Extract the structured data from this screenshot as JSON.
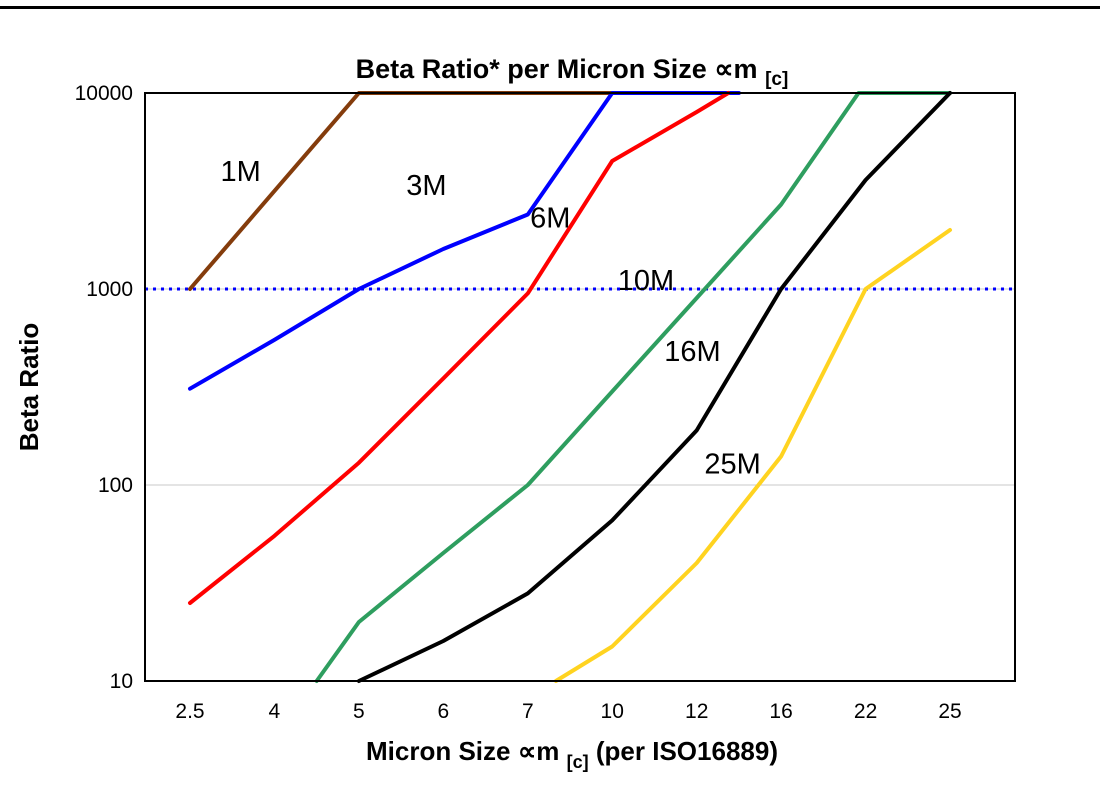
{
  "title": {
    "prefix": "Beta Ratio* per Micron Size ",
    "symbol": "∝m",
    "subscript": "[c]"
  },
  "y_axis": {
    "label": "Beta Ratio",
    "scale": "log",
    "ticks": [
      "10000",
      "1000",
      "100",
      "10"
    ]
  },
  "x_axis": {
    "label_prefix": "Micron Size ",
    "label_symbol": "∝m",
    "label_subscript": "[c]",
    "label_suffix": " (per ISO16889)",
    "ticks": [
      "2.5",
      "4",
      "5",
      "6",
      "7",
      "10",
      "12",
      "16",
      "22",
      "25"
    ]
  },
  "chart_data": {
    "type": "line",
    "title": "Beta Ratio* per Micron Size ∝m[c]",
    "xlabel": "Micron Size ∝m[c] (per ISO16889)",
    "ylabel": "Beta Ratio",
    "x_scale": "categorical",
    "y_scale": "log",
    "ylim": [
      10,
      10000
    ],
    "grid": "horizontal-decades",
    "legend_position": "inline-labels",
    "categories": [
      2.5,
      4,
      5,
      6,
      7,
      10,
      12,
      16,
      22,
      25
    ],
    "reference_line": {
      "value": 1000,
      "color": "#0000FF",
      "style": "dotted"
    },
    "gridlines": [
      100,
      1000
    ],
    "series": [
      {
        "name": "1M",
        "color": "#843C0C",
        "points": [
          [
            2.5,
            1000
          ],
          [
            5,
            10000
          ],
          [
            10,
            10000
          ]
        ],
        "label": {
          "text": "1M",
          "x": 3.4,
          "y": 3900
        }
      },
      {
        "name": "3M",
        "color": "#0000FF",
        "points": [
          [
            2.5,
            310
          ],
          [
            4,
            550
          ],
          [
            5,
            1000
          ],
          [
            6,
            1600
          ],
          [
            7,
            2400
          ],
          [
            10,
            10000
          ],
          [
            14,
            10000
          ]
        ],
        "label": {
          "text": "3M",
          "x": 5.8,
          "y": 3300
        }
      },
      {
        "name": "6M",
        "color": "#FF0000",
        "points": [
          [
            2.5,
            25
          ],
          [
            4,
            55
          ],
          [
            5,
            130
          ],
          [
            6,
            350
          ],
          [
            7,
            950
          ],
          [
            10,
            4500
          ],
          [
            12,
            8000
          ],
          [
            13.5,
            10000
          ]
        ],
        "label": {
          "text": "6M",
          "x": 7.8,
          "y": 2250
        }
      },
      {
        "name": "10M",
        "color": "#2E9E5F",
        "points": [
          [
            4.5,
            10
          ],
          [
            5,
            20
          ],
          [
            6,
            45
          ],
          [
            7,
            100
          ],
          [
            10,
            300
          ],
          [
            12,
            900
          ],
          [
            16,
            2700
          ],
          [
            21.5,
            10000
          ],
          [
            25,
            10000
          ]
        ],
        "label": {
          "text": "10M",
          "x": 10.8,
          "y": 1080
        }
      },
      {
        "name": "16M",
        "color": "#000000",
        "points": [
          [
            5,
            10
          ],
          [
            6,
            16
          ],
          [
            7,
            28
          ],
          [
            10,
            66
          ],
          [
            12,
            190
          ],
          [
            16,
            1000
          ],
          [
            22,
            3600
          ],
          [
            25,
            10000
          ]
        ],
        "label": {
          "text": "16M",
          "x": 11.9,
          "y": 470
        }
      },
      {
        "name": "25M",
        "color": "#FFD320",
        "points": [
          [
            8,
            10
          ],
          [
            10,
            15
          ],
          [
            12,
            40
          ],
          [
            16,
            140
          ],
          [
            22,
            1000
          ],
          [
            25,
            2000
          ]
        ],
        "label": {
          "text": "25M",
          "x": 13.7,
          "y": 125
        }
      }
    ]
  }
}
